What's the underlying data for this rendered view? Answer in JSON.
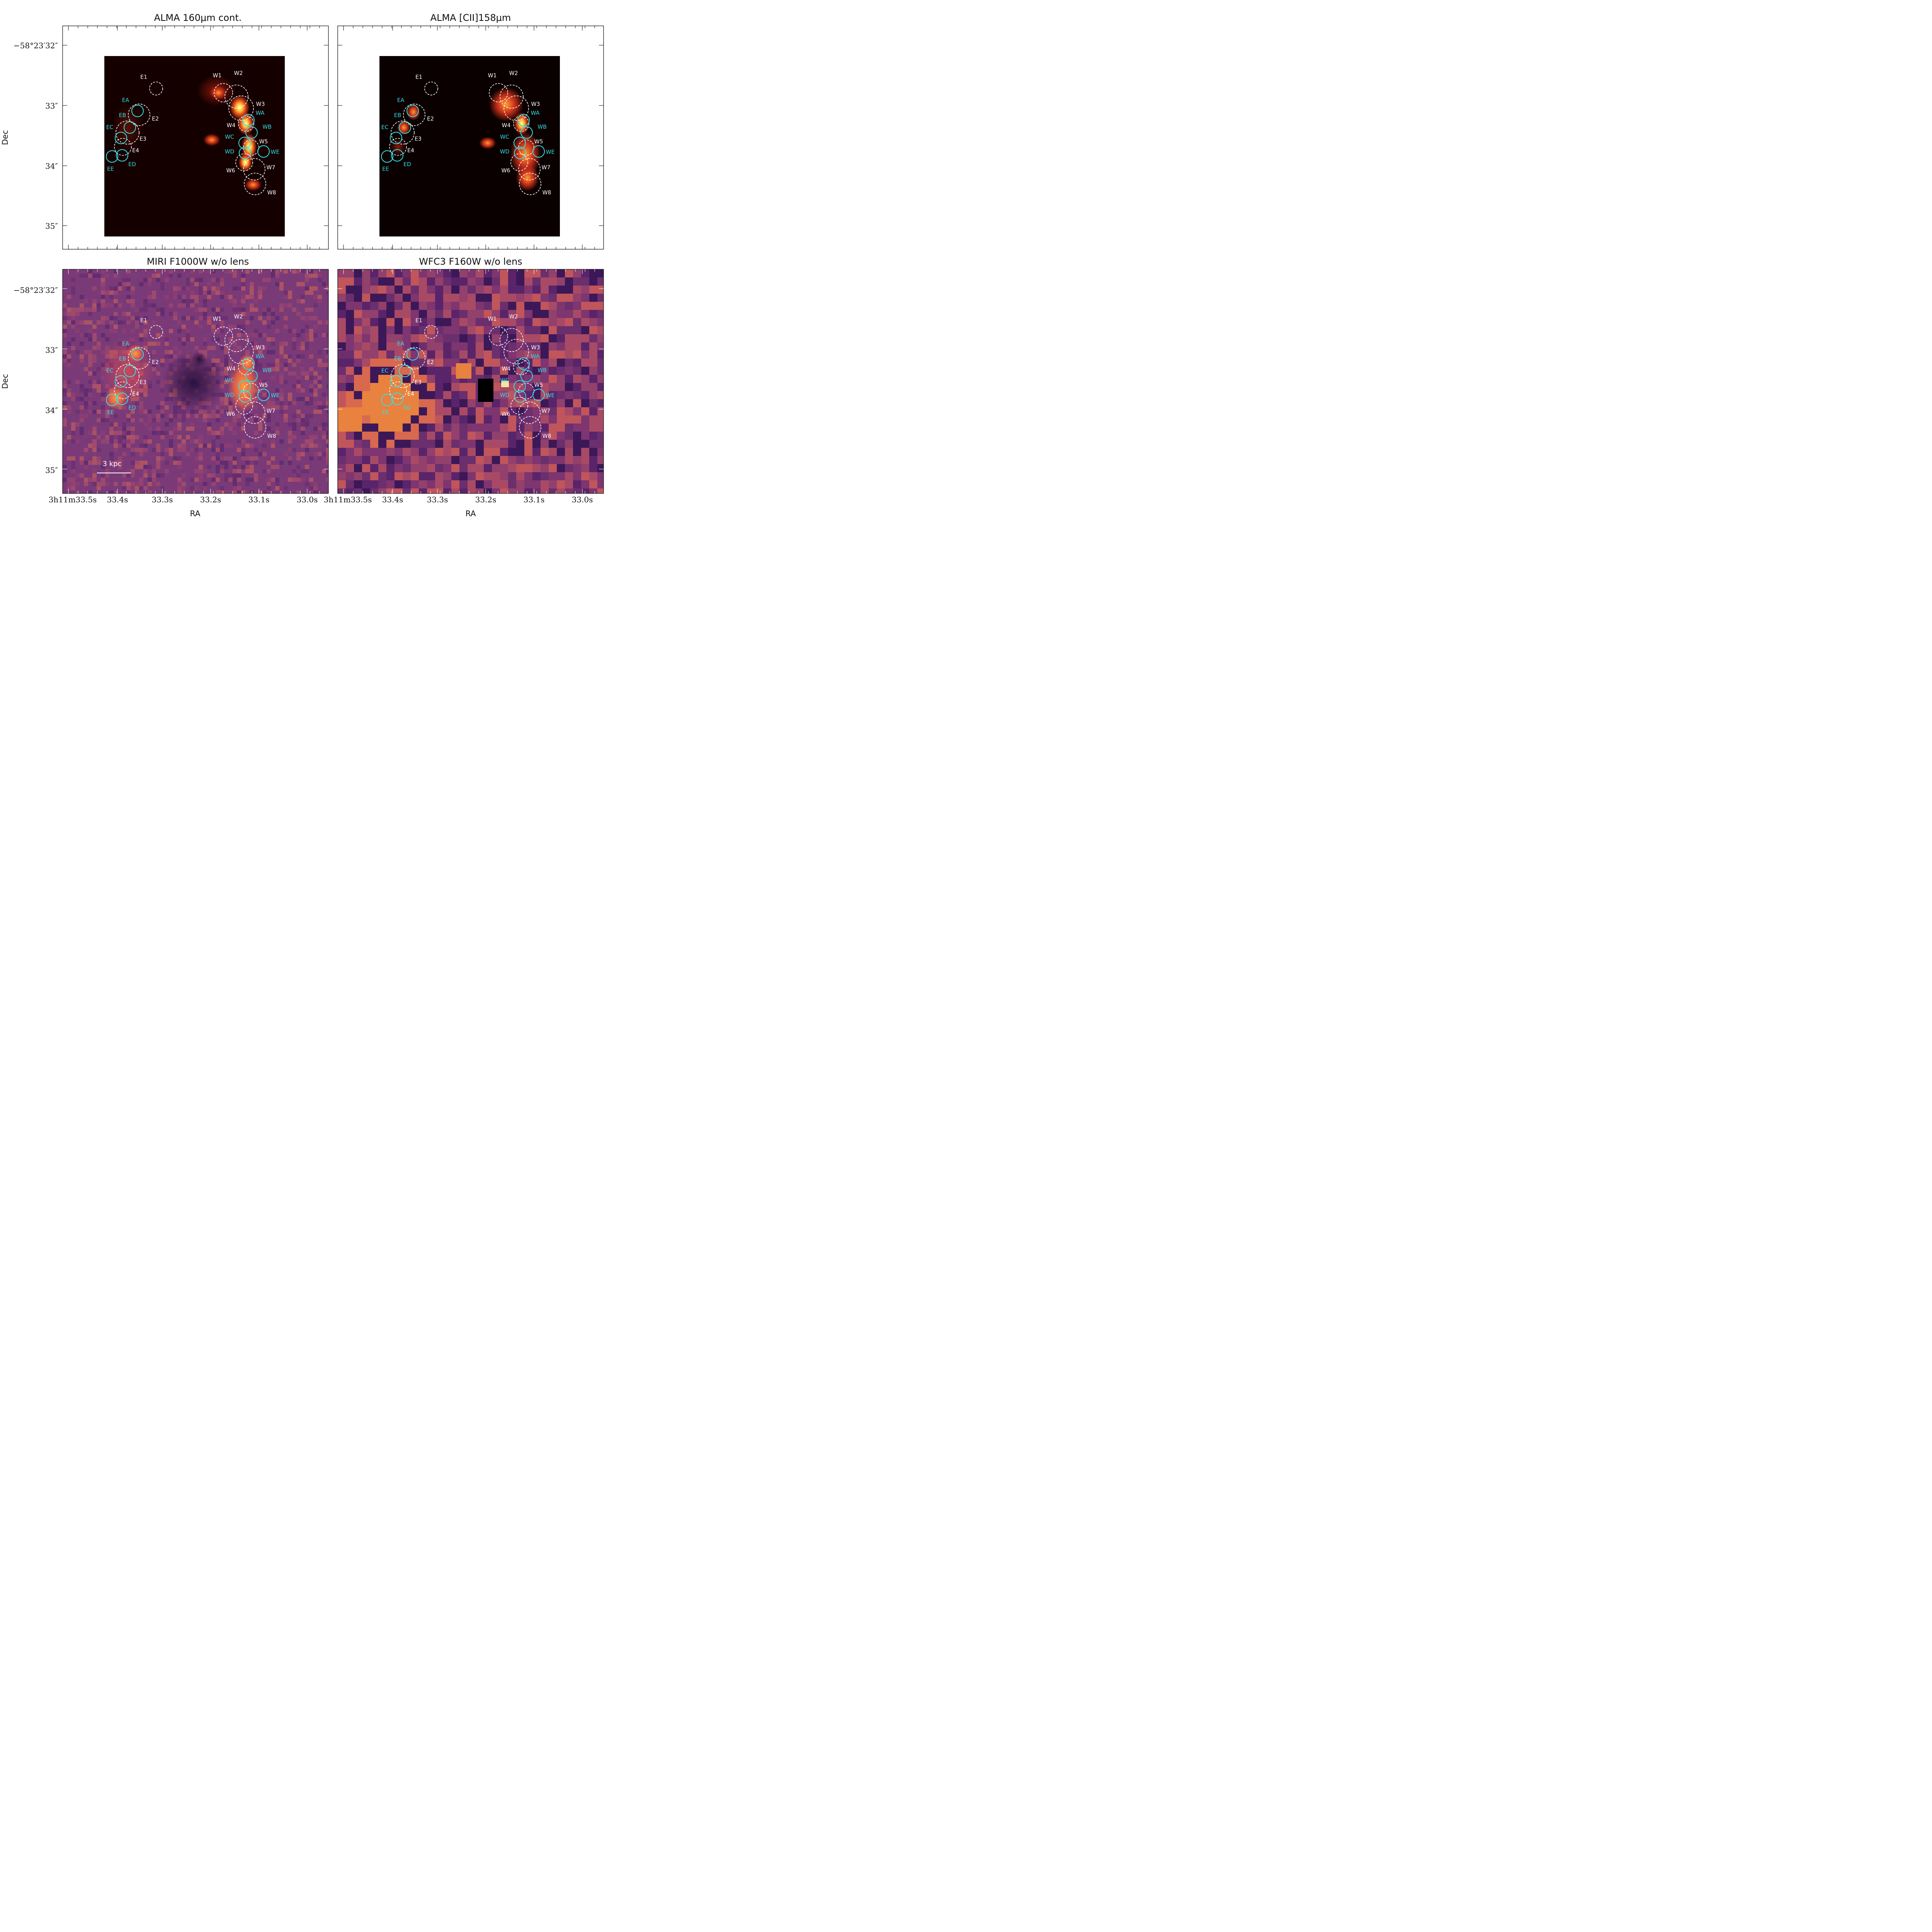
{
  "panels": [
    {
      "id": "alma-cont",
      "title": "ALMA 160μm cont.",
      "kind": "alma-cont"
    },
    {
      "id": "alma-cii",
      "title": "ALMA [CII]158μm",
      "kind": "alma-cii"
    },
    {
      "id": "miri",
      "title": "MIRI F1000W w/o lens",
      "kind": "miri"
    },
    {
      "id": "wfc3",
      "title": "WFC3 F160W w/o lens",
      "kind": "wfc3"
    }
  ],
  "axes": {
    "xlabel": "RA",
    "ylabel": "Dec",
    "ra_ticks": [
      "3h11m33.5s",
      "33.4s",
      "33.3s",
      "33.2s",
      "33.1s",
      "33.0s"
    ],
    "dec_ticks": [
      "−58°23′32″",
      "33″",
      "34″",
      "35″"
    ]
  },
  "regions": {
    "dashed_white": [
      "E1",
      "E2",
      "E3",
      "E4",
      "W1",
      "W2",
      "W3",
      "W4",
      "W5",
      "W6",
      "W7",
      "W8"
    ],
    "solid_cyan": [
      "EA",
      "EB",
      "EC",
      "ED",
      "EE",
      "WA",
      "WB",
      "WC",
      "WD",
      "WE"
    ]
  },
  "scale_bar": {
    "label": "3 kpc"
  },
  "colors": {
    "cyan": "#33e0e6",
    "white": "#ffffff",
    "alma_bg": "#150000",
    "cii_bg": "#0a0000",
    "miri_bg": "#7a3a78",
    "wfc3_bg": "#6b2f6d"
  }
}
